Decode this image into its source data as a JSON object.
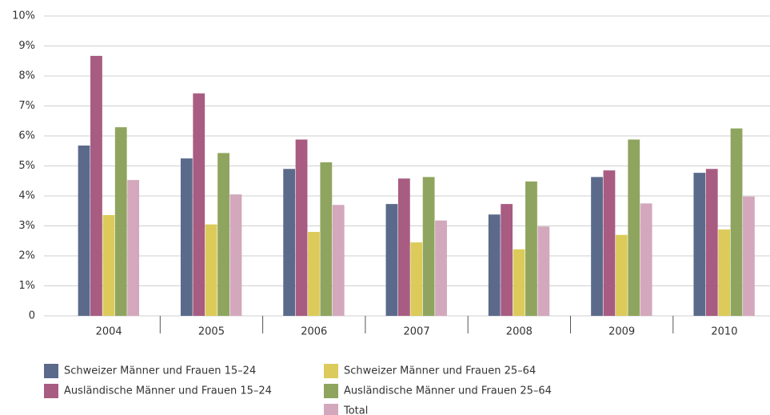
{
  "chart_data": {
    "type": "bar",
    "categories": [
      "2004",
      "2005",
      "2006",
      "2007",
      "2008",
      "2009",
      "2010"
    ],
    "series": [
      {
        "name": "Schweizer Männer und Frauen 15–24",
        "color": "#5b6a8b",
        "values": [
          5.68,
          5.25,
          4.9,
          3.73,
          3.38,
          4.63,
          4.77
        ]
      },
      {
        "name": "Ausländische Männer und Frauen 15–24",
        "color": "#a85c82",
        "values": [
          8.67,
          7.42,
          5.88,
          4.58,
          3.73,
          4.85,
          4.9
        ]
      },
      {
        "name": "Schweizer Männer und Frauen 25–64",
        "color": "#dccb5b",
        "values": [
          3.36,
          3.05,
          2.8,
          2.45,
          2.22,
          2.7,
          2.88
        ]
      },
      {
        "name": "Ausländische Männer und Frauen 25–64",
        "color": "#8fa55f",
        "values": [
          6.29,
          5.43,
          5.12,
          4.63,
          4.48,
          5.88,
          6.25
        ]
      },
      {
        "name": "Total",
        "color": "#d3a8bc",
        "values": [
          4.53,
          4.05,
          3.7,
          3.18,
          2.98,
          3.75,
          3.98
        ]
      }
    ],
    "ylim": [
      0,
      10
    ],
    "yticks": [
      0,
      {
        "value": 1,
        "label": "1%"
      },
      {
        "value": 2,
        "label": "2%"
      },
      {
        "value": 3,
        "label": "3%"
      },
      {
        "value": 4,
        "label": "4%"
      },
      {
        "value": 5,
        "label": "5%"
      },
      {
        "value": 6,
        "label": "6%"
      },
      {
        "value": 7,
        "label": "7%"
      },
      {
        "value": 8,
        "label": "8%"
      },
      {
        "value": 9,
        "label": "9%"
      },
      {
        "value": 10,
        "label": "10%"
      }
    ],
    "grid": true
  }
}
